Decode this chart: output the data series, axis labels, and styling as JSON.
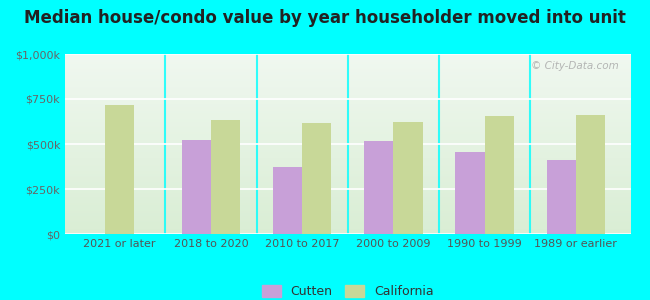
{
  "title": "Median house/condo value by year householder moved into unit",
  "categories": [
    "2021 or later",
    "2018 to 2020",
    "2010 to 2017",
    "2000 to 2009",
    "1990 to 1999",
    "1989 or earlier"
  ],
  "cutten_values": [
    null,
    525000,
    375000,
    515000,
    455000,
    410000
  ],
  "california_values": [
    715000,
    635000,
    615000,
    625000,
    655000,
    660000
  ],
  "cutten_color": "#c8a0d8",
  "california_color": "#c8d898",
  "background_color": "#00ffff",
  "ylim": [
    0,
    1000000
  ],
  "yticks": [
    0,
    250000,
    500000,
    750000,
    1000000
  ],
  "ytick_labels": [
    "$0",
    "$250k",
    "$500k",
    "$750k",
    "$1,000k"
  ],
  "watermark": "© City-Data.com",
  "legend_cutten": "Cutten",
  "legend_california": "California",
  "title_fontsize": 12,
  "tick_fontsize": 8,
  "legend_fontsize": 9,
  "bar_width": 0.32,
  "plot_bg_gradient_top": "#f0f8f0",
  "plot_bg_gradient_bottom": "#d8ecd0"
}
